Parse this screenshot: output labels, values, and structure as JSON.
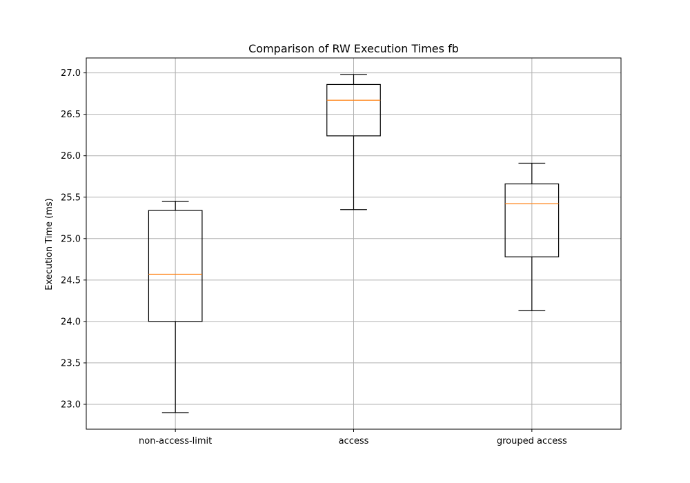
{
  "chart_data": {
    "type": "box",
    "title": "Comparison of RW Execution Times fb",
    "xlabel": "",
    "ylabel": "Execution Time (ms)",
    "ylim": [
      22.7,
      27.18
    ],
    "yticks": [
      "23.0",
      "23.5",
      "24.0",
      "24.5",
      "25.0",
      "25.5",
      "26.0",
      "26.5",
      "27.0"
    ],
    "grid": true,
    "categories": [
      "non-access-limit",
      "access",
      "grouped access"
    ],
    "boxes": [
      {
        "whisker_low": 22.9,
        "q1": 24.0,
        "median": 24.57,
        "q3": 25.34,
        "whisker_high": 25.45
      },
      {
        "whisker_low": 25.35,
        "q1": 26.24,
        "median": 26.67,
        "q3": 26.86,
        "whisker_high": 26.98
      },
      {
        "whisker_low": 24.13,
        "q1": 24.78,
        "median": 25.42,
        "q3": 25.66,
        "whisker_high": 25.91
      }
    ],
    "colors": {
      "box": "#000000",
      "median": "#ff7f0e",
      "grid": "#b0b0b0"
    }
  }
}
